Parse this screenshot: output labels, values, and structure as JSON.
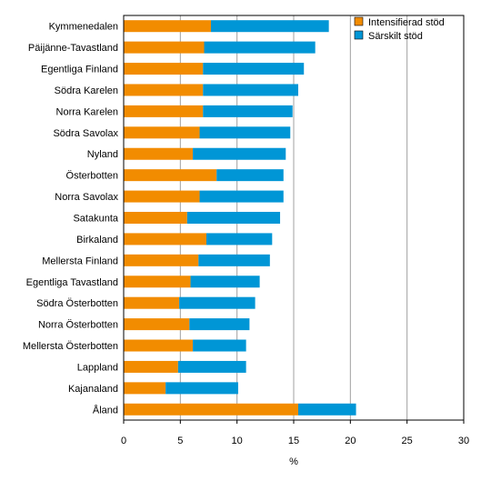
{
  "chart_data": {
    "type": "bar",
    "orientation": "horizontal",
    "stacked": true,
    "categories": [
      "Kymmenedalen",
      "Päijänne-Tavastland",
      "Egentliga Finland",
      "Södra Karelen",
      "Norra Karelen",
      "Södra Savolax",
      "Nyland",
      "Österbotten",
      "Norra Savolax",
      "Satakunta",
      "Birkaland",
      "Mellersta Finland",
      "Egentliga Tavastland",
      "Södra Österbotten",
      "Norra Österbotten",
      "Mellersta Österbotten",
      "Lappland",
      "Kajanaland",
      "Åland"
    ],
    "series": [
      {
        "name": "Intensifierad stöd",
        "color": "#f28c00",
        "values": [
          7.7,
          7.1,
          7.0,
          7.0,
          7.0,
          6.7,
          6.1,
          8.2,
          6.7,
          5.6,
          7.3,
          6.6,
          5.9,
          4.9,
          5.8,
          6.1,
          4.8,
          3.7,
          15.4
        ]
      },
      {
        "name": "Särskilt stöd",
        "color": "#0096d6",
        "values": [
          10.4,
          9.8,
          8.9,
          8.4,
          7.9,
          8.0,
          8.2,
          5.9,
          7.4,
          8.2,
          5.8,
          6.3,
          6.1,
          6.7,
          5.3,
          4.7,
          6.0,
          6.4,
          5.1
        ]
      }
    ],
    "xlim": [
      0,
      30
    ],
    "xticks": [
      0,
      5,
      10,
      15,
      20,
      25,
      30
    ],
    "xlabel": "%",
    "grid": "vertical",
    "legend": "top-right"
  }
}
